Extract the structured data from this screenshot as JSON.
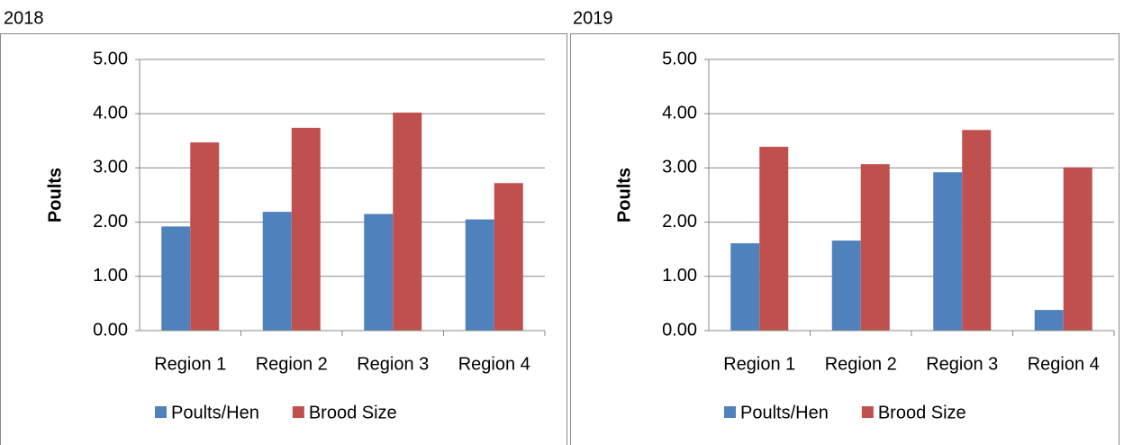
{
  "chart_data": [
    {
      "type": "bar",
      "title": "2018",
      "y_label": "Poults",
      "categories": [
        "Region 1",
        "Region 2",
        "Region 3",
        "Region 4"
      ],
      "series": [
        {
          "name": "Poults/Hen",
          "color": "#4f81bd",
          "values": [
            1.92,
            2.19,
            2.15,
            2.05
          ]
        },
        {
          "name": "Brood Size",
          "color": "#c0504d",
          "values": [
            3.47,
            3.74,
            4.02,
            2.72
          ]
        }
      ],
      "ylim": [
        0,
        5
      ],
      "yticks": [
        {
          "value": 0,
          "label": "0.00"
        },
        {
          "value": 1,
          "label": "1.00"
        },
        {
          "value": 2,
          "label": "2.00"
        },
        {
          "value": 3,
          "label": "3.00"
        },
        {
          "value": 4,
          "label": "4.00"
        },
        {
          "value": 5,
          "label": "5.00"
        }
      ],
      "grid": true,
      "legend": "bottom"
    },
    {
      "type": "bar",
      "title": "2019",
      "y_label": "Poults",
      "categories": [
        "Region 1",
        "Region 2",
        "Region 3",
        "Region 4"
      ],
      "series": [
        {
          "name": "Poults/Hen",
          "color": "#4f81bd",
          "values": [
            1.61,
            1.66,
            2.92,
            0.38
          ]
        },
        {
          "name": "Brood Size",
          "color": "#c0504d",
          "values": [
            3.39,
            3.07,
            3.7,
            3.01
          ]
        }
      ],
      "ylim": [
        0,
        5
      ],
      "yticks": [
        {
          "value": 0,
          "label": "0.00"
        },
        {
          "value": 1,
          "label": "1.00"
        },
        {
          "value": 2,
          "label": "2.00"
        },
        {
          "value": 3,
          "label": "3.00"
        },
        {
          "value": 4,
          "label": "4.00"
        },
        {
          "value": 5,
          "label": "5.00"
        }
      ],
      "grid": true,
      "legend": "bottom"
    }
  ]
}
